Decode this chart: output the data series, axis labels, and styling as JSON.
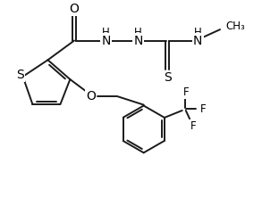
{
  "bg_color": "#ffffff",
  "line_color": "#1a1a1a",
  "line_width": 1.4,
  "font_size": 8.5,
  "figsize": [
    3.12,
    2.21
  ],
  "dpi": 100,
  "xlim": [
    -0.5,
    9.5
  ],
  "ylim": [
    -3.5,
    3.5
  ]
}
